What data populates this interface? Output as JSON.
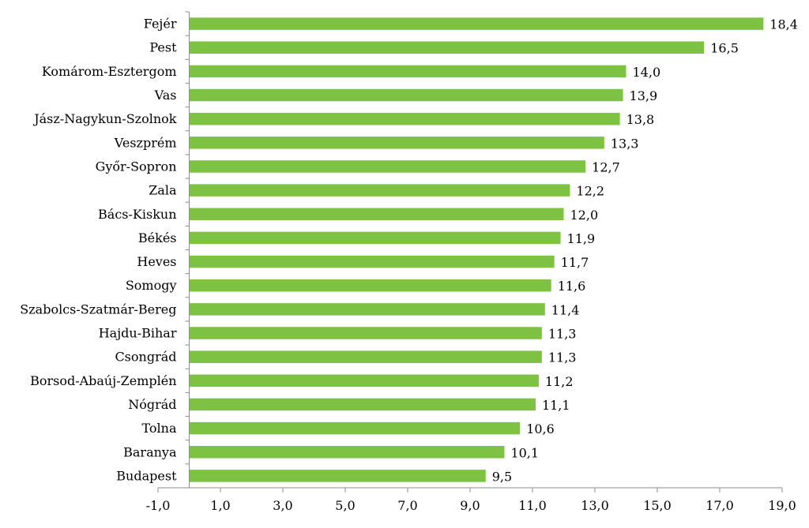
{
  "chart_data": {
    "type": "bar",
    "orientation": "horizontal",
    "categories": [
      "Fejér",
      "Pest",
      "Komárom-Esztergom",
      "Vas",
      "Jász-Nagykun-Szolnok",
      "Veszprém",
      "Győr-Sopron",
      "Zala",
      "Bács-Kiskun",
      "Békés",
      "Heves",
      "Somogy",
      "Szabolcs-Szatmár-Bereg",
      "Hajdu-Bihar",
      "Csongrád",
      "Borsod-Abaúj-Zemplén",
      "Nógrád",
      "Tolna",
      "Baranya",
      "Budapest"
    ],
    "values": [
      18.4,
      16.5,
      14.0,
      13.9,
      13.8,
      13.3,
      12.7,
      12.2,
      12.0,
      11.9,
      11.7,
      11.6,
      11.4,
      11.3,
      11.3,
      11.2,
      11.1,
      10.6,
      10.1,
      9.5
    ],
    "value_labels": [
      "18,4",
      "16,5",
      "14,0",
      "13,9",
      "13,8",
      "13,3",
      "12,7",
      "12,2",
      "12,0",
      "11,9",
      "11,7",
      "11,6",
      "11,4",
      "11,3",
      "11,3",
      "11,2",
      "11,1",
      "10,6",
      "10,1",
      "9,5"
    ],
    "xlim": [
      -1.0,
      19.0
    ],
    "xticks": [
      -1.0,
      1.0,
      3.0,
      5.0,
      7.0,
      9.0,
      11.0,
      13.0,
      15.0,
      17.0,
      19.0
    ],
    "xtick_labels": [
      "-1,0",
      "1,0",
      "3,0",
      "5,0",
      "7,0",
      "9,0",
      "11,0",
      "13,0",
      "15,0",
      "17,0",
      "19,0"
    ],
    "grid": false,
    "legend": "none",
    "bar_color": "#7dc243",
    "title": "",
    "xlabel": "",
    "ylabel": ""
  }
}
